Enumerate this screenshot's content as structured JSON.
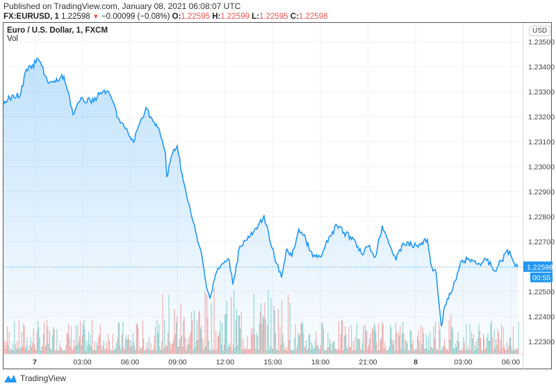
{
  "header": {
    "published": "Published on TradingView.com, January 08, 2021 06:08:07 UTC",
    "symbol": "FX:EURUSD, 1",
    "last": "1.22598",
    "change": "−0.00099 (−0.08%)",
    "o_label": "O:",
    "o": "1.22595",
    "h_label": "H:",
    "h": "1.22599",
    "l_label": "L:",
    "l": "1.22595",
    "c_label": "C:",
    "c": "1.22598"
  },
  "legend": {
    "title": "Euro / U.S. Dollar, 1, FXCM",
    "vol": "Vol"
  },
  "currency": "USD",
  "footer": {
    "brand": "TradingView"
  },
  "colors": {
    "line": "#2196f3",
    "up": "#26a69a",
    "down": "#ef5350",
    "price_tag": "#2196f3"
  },
  "chart_data": {
    "type": "area",
    "title": "Euro / U.S. Dollar, 1, FXCM",
    "x_unit": "hours from Jan 7 00:00 UTC",
    "x": [
      -1.97,
      -1.31,
      -0.88,
      -0.53,
      -0.22,
      0.22,
      0.44,
      0.88,
      1.31,
      1.84,
      2.19,
      2.41,
      2.85,
      3.5,
      3.94,
      4.38,
      4.82,
      5.26,
      5.69,
      6.22,
      6.57,
      7.01,
      7.45,
      7.88,
      8.23,
      8.32,
      8.76,
      8.98,
      9.28,
      9.64,
      9.99,
      10.29,
      10.51,
      10.73,
      11.04,
      11.39,
      11.82,
      12.26,
      12.48,
      12.92,
      13.58,
      14.01,
      14.45,
      14.8,
      15.24,
      15.55,
      15.85,
      16.2,
      16.64,
      17.08,
      17.52,
      18.04,
      18.61,
      19.05,
      19.49,
      20.15,
      20.58,
      21.02,
      21.46,
      21.9,
      22.25,
      22.77,
      23.21,
      24.09,
      24.74,
      24.96,
      25.31,
      25.49,
      25.62,
      25.84,
      26.28,
      26.93,
      27.59,
      28.03,
      28.47,
      28.99,
      29.43,
      29.78,
      30.13,
      30.44
    ],
    "y": [
      1.23264,
      1.23278,
      1.23292,
      1.23389,
      1.23394,
      1.23431,
      1.23403,
      1.23333,
      1.23339,
      1.23361,
      1.23278,
      1.23208,
      1.23264,
      1.23264,
      1.23278,
      1.23306,
      1.23278,
      1.23194,
      1.23153,
      1.23097,
      1.23167,
      1.23236,
      1.23181,
      1.23139,
      1.23056,
      1.22958,
      1.23069,
      1.23083,
      1.22972,
      1.22861,
      1.22778,
      1.22694,
      1.22653,
      1.22556,
      1.22472,
      1.22569,
      1.22611,
      1.22625,
      1.22528,
      1.22681,
      1.22722,
      1.2275,
      1.22806,
      1.22708,
      1.22611,
      1.22556,
      1.22667,
      1.22639,
      1.2275,
      1.22708,
      1.22639,
      1.22639,
      1.22722,
      1.22764,
      1.22736,
      1.22708,
      1.22653,
      1.22681,
      1.22639,
      1.22764,
      1.22708,
      1.22625,
      1.22694,
      1.22681,
      1.22708,
      1.22611,
      1.22569,
      1.22444,
      1.22361,
      1.22444,
      1.225,
      1.22625,
      1.22625,
      1.22611,
      1.22625,
      1.22583,
      1.22625,
      1.22667,
      1.22625,
      1.22598
    ],
    "ylim": [
      1.2225,
      1.2355
    ],
    "y_ticks": [
      "1.23500",
      "1.23400",
      "1.23300",
      "1.23200",
      "1.23100",
      "1.23000",
      "1.22900",
      "1.22800",
      "1.22700",
      "1.22500",
      "1.22400",
      "1.22300"
    ],
    "x_ticks": [
      {
        "h": 0,
        "label": "7",
        "bold": true
      },
      {
        "h": 3,
        "label": "03:00"
      },
      {
        "h": 6,
        "label": "06:00"
      },
      {
        "h": 9,
        "label": "09:00"
      },
      {
        "h": 12,
        "label": "12:00"
      },
      {
        "h": 15,
        "label": "15:00"
      },
      {
        "h": 18,
        "label": "18:00"
      },
      {
        "h": 21,
        "label": "21:00"
      },
      {
        "h": 24,
        "label": "8",
        "bold": true
      },
      {
        "h": 27,
        "label": "03:00"
      },
      {
        "h": 30,
        "label": "06:00"
      }
    ],
    "last_price_label": "1.22598",
    "countdown": "00:55",
    "grid": true
  }
}
